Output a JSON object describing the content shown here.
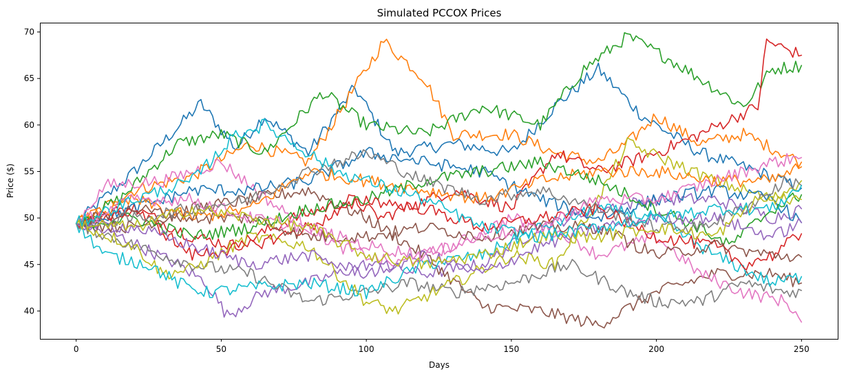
{
  "chart_data": {
    "type": "line",
    "title": "Simulated PCCOX Prices",
    "xlabel": "Days",
    "ylabel": "Price ($)",
    "xlim": [
      -12.5,
      262.5
    ],
    "ylim": [
      37.0,
      71.0
    ],
    "xticks": [
      0,
      50,
      100,
      150,
      200,
      250
    ],
    "yticks": [
      40,
      45,
      50,
      55,
      60,
      65,
      70
    ],
    "grid": false,
    "legend": "none",
    "start_value": 49.4,
    "n_days": 250,
    "series": [
      {
        "color": "#1f77b4",
        "points": [
          [
            0,
            49.4
          ],
          [
            20,
            55
          ],
          [
            43,
            62.3
          ],
          [
            55,
            57.5
          ],
          [
            65,
            61
          ],
          [
            80,
            57
          ],
          [
            96,
            64
          ],
          [
            110,
            57
          ],
          [
            130,
            58
          ],
          [
            150,
            57
          ],
          [
            165,
            62
          ],
          [
            180,
            66
          ],
          [
            195,
            61
          ],
          [
            215,
            57
          ],
          [
            235,
            55
          ],
          [
            250,
            53.2
          ]
        ]
      },
      {
        "color": "#ff7f0e",
        "points": [
          [
            0,
            49.4
          ],
          [
            20,
            53
          ],
          [
            40,
            54.5
          ],
          [
            60,
            58
          ],
          [
            80,
            56
          ],
          [
            98,
            65
          ],
          [
            106,
            69
          ],
          [
            120,
            65
          ],
          [
            130,
            59
          ],
          [
            150,
            59
          ],
          [
            165,
            57
          ],
          [
            180,
            56
          ],
          [
            190,
            58
          ],
          [
            200,
            61
          ],
          [
            215,
            58
          ],
          [
            230,
            59
          ],
          [
            250,
            56
          ]
        ]
      },
      {
        "color": "#2ca02c",
        "points": [
          [
            0,
            49.4
          ],
          [
            15,
            52
          ],
          [
            35,
            58
          ],
          [
            50,
            59
          ],
          [
            65,
            57
          ],
          [
            85,
            63.5
          ],
          [
            100,
            60
          ],
          [
            120,
            59
          ],
          [
            140,
            62
          ],
          [
            160,
            60
          ],
          [
            175,
            66
          ],
          [
            190,
            69.5
          ],
          [
            205,
            67
          ],
          [
            220,
            64
          ],
          [
            230,
            62
          ],
          [
            240,
            66
          ],
          [
            250,
            66.4
          ]
        ]
      },
      {
        "color": "#d62728",
        "points": [
          [
            0,
            49.4
          ],
          [
            20,
            51
          ],
          [
            40,
            48
          ],
          [
            55,
            47
          ],
          [
            75,
            50
          ],
          [
            95,
            52
          ],
          [
            105,
            50
          ],
          [
            130,
            53
          ],
          [
            150,
            51
          ],
          [
            165,
            57
          ],
          [
            180,
            55
          ],
          [
            200,
            57
          ],
          [
            215,
            59
          ],
          [
            235,
            62
          ],
          [
            238,
            69
          ],
          [
            250,
            67.5
          ]
        ]
      },
      {
        "color": "#9467bd",
        "points": [
          [
            0,
            49.4
          ],
          [
            15,
            48
          ],
          [
            35,
            45
          ],
          [
            45,
            43
          ],
          [
            52,
            39.5
          ],
          [
            65,
            42
          ],
          [
            80,
            43
          ],
          [
            100,
            45
          ],
          [
            120,
            44
          ],
          [
            140,
            45
          ],
          [
            160,
            49
          ],
          [
            180,
            51
          ],
          [
            200,
            52
          ],
          [
            220,
            52
          ],
          [
            240,
            50
          ],
          [
            250,
            51
          ]
        ]
      },
      {
        "color": "#8c564b",
        "points": [
          [
            0,
            49.4
          ],
          [
            20,
            49
          ],
          [
            40,
            51
          ],
          [
            60,
            52
          ],
          [
            80,
            53
          ],
          [
            100,
            50
          ],
          [
            120,
            46
          ],
          [
            140,
            40.5
          ],
          [
            160,
            40
          ],
          [
            180,
            38.5
          ],
          [
            200,
            42
          ],
          [
            220,
            44
          ],
          [
            240,
            44
          ],
          [
            250,
            43
          ]
        ]
      },
      {
        "color": "#e377c2",
        "points": [
          [
            0,
            49.4
          ],
          [
            10,
            53.5
          ],
          [
            30,
            54
          ],
          [
            50,
            56
          ],
          [
            70,
            51
          ],
          [
            90,
            47
          ],
          [
            110,
            45
          ],
          [
            130,
            47
          ],
          [
            150,
            50
          ],
          [
            170,
            48
          ],
          [
            180,
            46
          ],
          [
            200,
            48
          ],
          [
            215,
            44
          ],
          [
            230,
            42
          ],
          [
            245,
            41
          ],
          [
            250,
            38.8
          ]
        ]
      },
      {
        "color": "#7f7f7f",
        "points": [
          [
            0,
            49.4
          ],
          [
            20,
            47
          ],
          [
            40,
            45
          ],
          [
            60,
            44
          ],
          [
            80,
            41
          ],
          [
            100,
            42
          ],
          [
            115,
            43
          ],
          [
            130,
            42
          ],
          [
            150,
            43
          ],
          [
            170,
            45
          ],
          [
            190,
            42
          ],
          [
            200,
            41
          ],
          [
            215,
            41
          ],
          [
            230,
            43
          ],
          [
            245,
            42
          ],
          [
            250,
            42.2
          ]
        ]
      },
      {
        "color": "#bcbd22",
        "points": [
          [
            0,
            49.4
          ],
          [
            20,
            47
          ],
          [
            30,
            44
          ],
          [
            40,
            44.5
          ],
          [
            60,
            48
          ],
          [
            80,
            47
          ],
          [
            100,
            41
          ],
          [
            110,
            40
          ],
          [
            130,
            43
          ],
          [
            150,
            46
          ],
          [
            165,
            45
          ],
          [
            180,
            52
          ],
          [
            190,
            58
          ],
          [
            205,
            56
          ],
          [
            220,
            54
          ],
          [
            240,
            52
          ],
          [
            250,
            54
          ]
        ]
      },
      {
        "color": "#17becf",
        "points": [
          [
            0,
            49.4
          ],
          [
            10,
            46
          ],
          [
            25,
            45
          ],
          [
            35,
            43
          ],
          [
            45,
            42
          ],
          [
            60,
            42.5
          ],
          [
            80,
            43
          ],
          [
            100,
            42
          ],
          [
            120,
            45
          ],
          [
            140,
            46
          ],
          [
            160,
            49
          ],
          [
            180,
            51
          ],
          [
            200,
            50
          ],
          [
            220,
            46
          ],
          [
            240,
            43
          ],
          [
            250,
            43.7
          ]
        ]
      },
      {
        "color": "#1f77b4",
        "points": [
          [
            0,
            49.4
          ],
          [
            20,
            51
          ],
          [
            40,
            53
          ],
          [
            60,
            53
          ],
          [
            80,
            54
          ],
          [
            100,
            57
          ],
          [
            120,
            56
          ],
          [
            140,
            55
          ],
          [
            160,
            52
          ],
          [
            180,
            50
          ],
          [
            200,
            52
          ],
          [
            220,
            53
          ],
          [
            240,
            52
          ],
          [
            250,
            49.5
          ]
        ]
      },
      {
        "color": "#ff7f0e",
        "points": [
          [
            0,
            49.4
          ],
          [
            20,
            52
          ],
          [
            40,
            50
          ],
          [
            60,
            51
          ],
          [
            80,
            55
          ],
          [
            100,
            54
          ],
          [
            120,
            53
          ],
          [
            140,
            52
          ],
          [
            160,
            54
          ],
          [
            180,
            55
          ],
          [
            200,
            55
          ],
          [
            220,
            54
          ],
          [
            240,
            54
          ],
          [
            250,
            55.5
          ]
        ]
      },
      {
        "color": "#2ca02c",
        "points": [
          [
            0,
            49.4
          ],
          [
            20,
            50
          ],
          [
            40,
            48
          ],
          [
            60,
            49
          ],
          [
            80,
            51
          ],
          [
            100,
            52
          ],
          [
            120,
            54
          ],
          [
            140,
            55
          ],
          [
            160,
            56
          ],
          [
            180,
            54
          ],
          [
            200,
            51
          ],
          [
            215,
            49
          ],
          [
            225,
            47
          ],
          [
            240,
            51
          ],
          [
            250,
            52.5
          ]
        ]
      },
      {
        "color": "#d62728",
        "points": [
          [
            0,
            49.4
          ],
          [
            20,
            51
          ],
          [
            40,
            46
          ],
          [
            60,
            47
          ],
          [
            80,
            49
          ],
          [
            100,
            52
          ],
          [
            120,
            51
          ],
          [
            140,
            49
          ],
          [
            160,
            50
          ],
          [
            180,
            51
          ],
          [
            200,
            48
          ],
          [
            220,
            47
          ],
          [
            230,
            45
          ],
          [
            240,
            46
          ],
          [
            250,
            48.3
          ]
        ]
      },
      {
        "color": "#9467bd",
        "points": [
          [
            0,
            49.4
          ],
          [
            20,
            49
          ],
          [
            40,
            47
          ],
          [
            60,
            45
          ],
          [
            80,
            46
          ],
          [
            100,
            44
          ],
          [
            120,
            46
          ],
          [
            140,
            44
          ],
          [
            160,
            47
          ],
          [
            180,
            49
          ],
          [
            200,
            50
          ],
          [
            220,
            50
          ],
          [
            240,
            48
          ],
          [
            250,
            49.5
          ]
        ]
      },
      {
        "color": "#8c564b",
        "points": [
          [
            0,
            49.4
          ],
          [
            20,
            51
          ],
          [
            40,
            50
          ],
          [
            60,
            50
          ],
          [
            80,
            48
          ],
          [
            100,
            48
          ],
          [
            120,
            49
          ],
          [
            140,
            48
          ],
          [
            160,
            49
          ],
          [
            180,
            49
          ],
          [
            200,
            46
          ],
          [
            220,
            47
          ],
          [
            240,
            46
          ],
          [
            250,
            45.8
          ]
        ]
      },
      {
        "color": "#e377c2",
        "points": [
          [
            0,
            49.4
          ],
          [
            20,
            52
          ],
          [
            40,
            52
          ],
          [
            60,
            50
          ],
          [
            80,
            49
          ],
          [
            100,
            47
          ],
          [
            120,
            46
          ],
          [
            140,
            48
          ],
          [
            160,
            49
          ],
          [
            180,
            52
          ],
          [
            200,
            52
          ],
          [
            220,
            54
          ],
          [
            240,
            56
          ],
          [
            250,
            56.5
          ]
        ]
      },
      {
        "color": "#7f7f7f",
        "points": [
          [
            0,
            49.4
          ],
          [
            20,
            50
          ],
          [
            40,
            51
          ],
          [
            60,
            52
          ],
          [
            80,
            55
          ],
          [
            100,
            57
          ],
          [
            120,
            54
          ],
          [
            140,
            52
          ],
          [
            160,
            53
          ],
          [
            180,
            51
          ],
          [
            200,
            49
          ],
          [
            215,
            49
          ],
          [
            230,
            51
          ],
          [
            245,
            54
          ],
          [
            250,
            53.5
          ]
        ]
      },
      {
        "color": "#bcbd22",
        "points": [
          [
            0,
            49.4
          ],
          [
            20,
            49
          ],
          [
            40,
            51
          ],
          [
            60,
            50
          ],
          [
            80,
            49
          ],
          [
            100,
            46
          ],
          [
            120,
            45
          ],
          [
            140,
            46
          ],
          [
            160,
            48
          ],
          [
            180,
            48
          ],
          [
            200,
            49
          ],
          [
            220,
            48
          ],
          [
            235,
            52
          ],
          [
            250,
            52
          ]
        ]
      },
      {
        "color": "#17becf",
        "points": [
          [
            0,
            49.4
          ],
          [
            20,
            52
          ],
          [
            40,
            54
          ],
          [
            55,
            59
          ],
          [
            65,
            60
          ],
          [
            80,
            57
          ],
          [
            90,
            55
          ],
          [
            100,
            54
          ],
          [
            120,
            52
          ],
          [
            140,
            49
          ],
          [
            160,
            48
          ],
          [
            180,
            49
          ],
          [
            200,
            50
          ],
          [
            220,
            51
          ],
          [
            240,
            51
          ],
          [
            250,
            53.5
          ]
        ]
      }
    ]
  }
}
